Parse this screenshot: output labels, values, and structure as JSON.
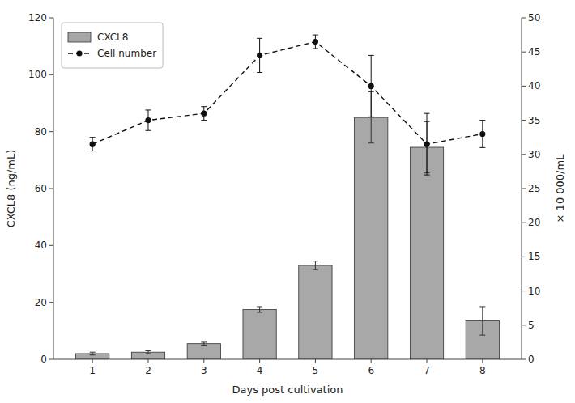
{
  "chart_data": {
    "type": "bar",
    "xlabel": "Days post cultivation",
    "ylabel": "CXCL8 (ng/mL)",
    "y2label": "× 10 000/mL",
    "x": [
      1,
      2,
      3,
      4,
      5,
      6,
      7,
      8
    ],
    "xlim": [
      0.3,
      8.7
    ],
    "xticks": [
      1,
      2,
      3,
      4,
      5,
      6,
      7,
      8
    ],
    "ylim": [
      0,
      120
    ],
    "yticks": [
      0,
      20,
      40,
      60,
      80,
      100,
      120
    ],
    "y2lim": [
      0,
      50
    ],
    "y2ticks": [
      0,
      5,
      10,
      15,
      20,
      25,
      30,
      35,
      40,
      45,
      50
    ],
    "grid": false,
    "legend": "upper left",
    "series": [
      {
        "name": "CXCL8",
        "type": "bar",
        "color": "#a8a8a8",
        "values": [
          2.0,
          2.5,
          5.5,
          17.5,
          33.0,
          85.0,
          74.5,
          13.5
        ],
        "errors": [
          0.5,
          0.5,
          0.5,
          1.0,
          1.5,
          9.0,
          9.0,
          5.0
        ]
      },
      {
        "name": "Cell number",
        "type": "line",
        "axis": "y2",
        "color": "#111111",
        "line_style": "dashed",
        "marker": "circle",
        "values": [
          31.5,
          35.0,
          36.0,
          44.5,
          46.5,
          40.0,
          31.5,
          33.0
        ],
        "errors": [
          1.0,
          1.5,
          1.0,
          2.5,
          1.0,
          4.5,
          4.5,
          2.0
        ]
      }
    ]
  }
}
